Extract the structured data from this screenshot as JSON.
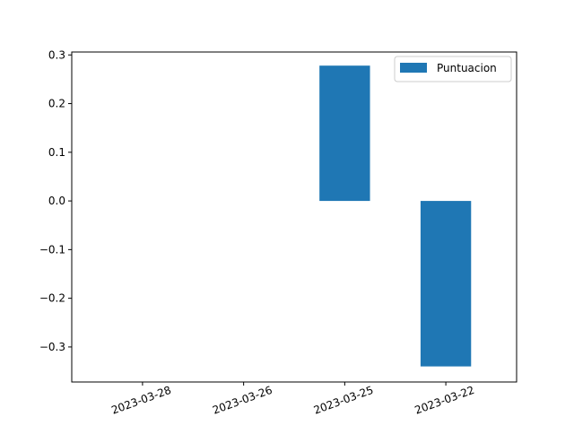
{
  "chart_data": {
    "type": "bar",
    "categories": [
      "2023-03-28",
      "2023-03-26",
      "2023-03-25",
      "2023-03-22"
    ],
    "series": [
      {
        "name": "Puntuacion",
        "values": [
          0.0,
          0.0,
          0.278,
          -0.34
        ],
        "color": "#1f77b4"
      }
    ],
    "ylim": [
      -0.372,
      0.306
    ],
    "yticks": [
      -0.3,
      -0.2,
      -0.1,
      0.0,
      0.1,
      0.2,
      0.3
    ],
    "ytick_labels": [
      "−0.3",
      "−0.2",
      "−0.1",
      "0.0",
      "0.1",
      "0.2",
      "0.3"
    ],
    "xtick_rotation": 20,
    "grid": false,
    "legend": {
      "position": "top-right"
    }
  }
}
